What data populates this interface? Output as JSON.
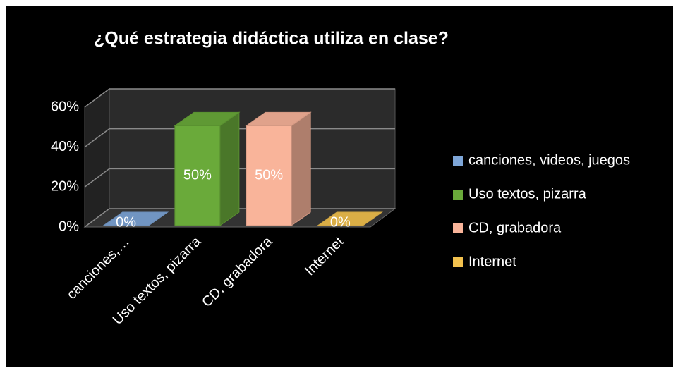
{
  "chart_data": {
    "type": "bar3d",
    "title": "¿Qué estrategia didáctica utiliza en clase?",
    "categories": [
      "canciones,…",
      "Uso textos, pizarra",
      "CD, grabadora",
      "Internet"
    ],
    "values": [
      0,
      50,
      50,
      0
    ],
    "value_labels": [
      "0%",
      "50%",
      "50%",
      "0%"
    ],
    "colors": [
      "#7ea6d8",
      "#6aaa3a",
      "#f9b49a",
      "#f2c14e"
    ],
    "legend": [
      "canciones, videos, juegos",
      "Uso textos, pizarra",
      "CD, grabadora",
      "Internet"
    ],
    "ylim": [
      0,
      60
    ],
    "yticks": [
      {
        "value": 0,
        "label": "0%"
      },
      {
        "value": 20,
        "label": "20%"
      },
      {
        "value": 40,
        "label": "40%"
      },
      {
        "value": 60,
        "label": "60%"
      }
    ],
    "grid": true
  }
}
